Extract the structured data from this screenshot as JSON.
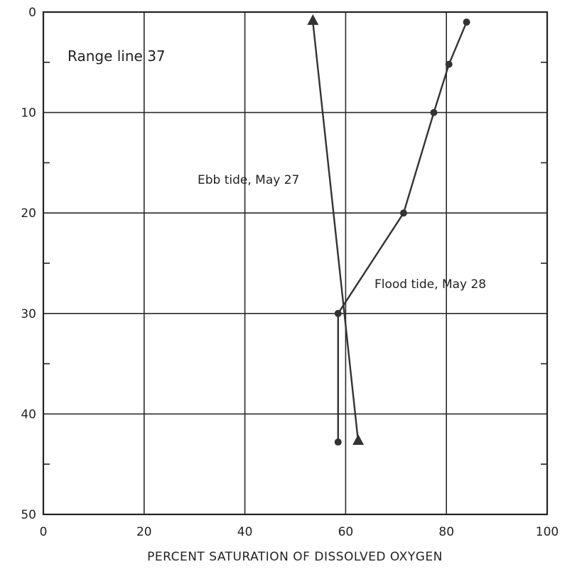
{
  "chart_data": {
    "type": "line",
    "title": "",
    "annotation": "Range line 37",
    "xlabel": "PERCENT SATURATION OF DISSOLVED OXYGEN",
    "ylabel": "",
    "xlim": [
      0,
      100
    ],
    "ylim": [
      0,
      50
    ],
    "y_inverted": true,
    "grid": true,
    "x_ticks": [
      0,
      20,
      40,
      60,
      80,
      100
    ],
    "y_ticks": [
      0,
      10,
      20,
      30,
      40,
      50
    ],
    "x_tick_labels": [
      "0",
      "20",
      "40",
      "60",
      "80",
      "100"
    ],
    "y_tick_labels": [
      "0",
      "10",
      "20",
      "30",
      "40",
      "50"
    ],
    "y_minor_ticks": [
      5,
      15,
      25,
      35,
      45
    ],
    "series": [
      {
        "name": "Ebb tide, May 27",
        "marker": "triangle",
        "color": "#333333",
        "points": [
          {
            "x": 53.5,
            "y": 1.0
          },
          {
            "x": 62.5,
            "y": 42.8
          }
        ]
      },
      {
        "name": "Flood tide, May 28",
        "marker": "circle",
        "color": "#333333",
        "points": [
          {
            "x": 84.0,
            "y": 1.0
          },
          {
            "x": 80.5,
            "y": 5.2
          },
          {
            "x": 77.5,
            "y": 10.0
          },
          {
            "x": 71.5,
            "y": 20.0
          },
          {
            "x": 58.5,
            "y": 30.0
          },
          {
            "x": 58.5,
            "y": 42.8
          }
        ]
      }
    ]
  }
}
